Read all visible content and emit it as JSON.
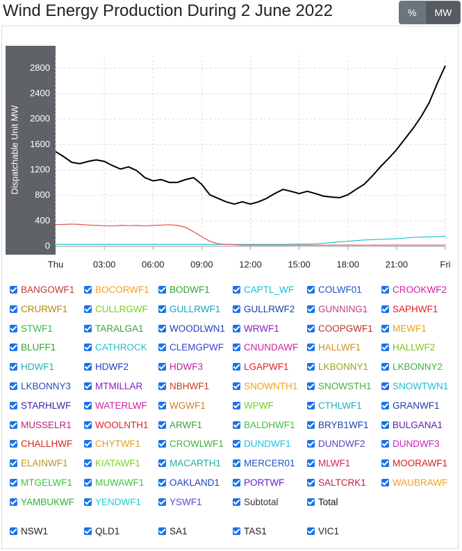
{
  "header": {
    "title": "Wind Energy Production During 2 June 2022",
    "buttons": [
      "%",
      "MW"
    ],
    "active_button": 1
  },
  "chart_data": {
    "type": "line",
    "ylabel": "Dispatchable Unit MW",
    "x": [
      0,
      0.5,
      1,
      1.5,
      2,
      2.5,
      3,
      3.5,
      4,
      4.5,
      5,
      5.5,
      6,
      6.5,
      7,
      7.5,
      8,
      8.5,
      9,
      9.5,
      10,
      10.5,
      11,
      11.5,
      12,
      12.5,
      13,
      13.5,
      14,
      14.5,
      15,
      15.5,
      16,
      16.5,
      17,
      17.5,
      18,
      18.5,
      19,
      19.5,
      20,
      20.5,
      21,
      21.5,
      22,
      22.5,
      23,
      23.5,
      24
    ],
    "xlim": [
      0,
      24
    ],
    "xticks": [
      {
        "value": 0,
        "label": "Thu"
      },
      {
        "value": 3,
        "label": "03:00"
      },
      {
        "value": 6,
        "label": "06:00"
      },
      {
        "value": 9,
        "label": "09:00"
      },
      {
        "value": 12,
        "label": "12:00"
      },
      {
        "value": 15,
        "label": "15:00"
      },
      {
        "value": 18,
        "label": "18:00"
      },
      {
        "value": 21,
        "label": "21:00"
      },
      {
        "value": 24,
        "label": "Fri"
      }
    ],
    "ylim": [
      0,
      3000
    ],
    "yticks": [
      0,
      400,
      800,
      1200,
      1600,
      2000,
      2400,
      2800
    ],
    "grid": true,
    "series": [
      {
        "name": "Total",
        "color": "#000000",
        "values": [
          1490,
          1410,
          1320,
          1300,
          1335,
          1360,
          1335,
          1270,
          1215,
          1250,
          1190,
          1080,
          1030,
          1050,
          1005,
          1005,
          1050,
          1080,
          975,
          810,
          755,
          700,
          665,
          700,
          665,
          700,
          755,
          830,
          895,
          865,
          830,
          865,
          830,
          790,
          775,
          765,
          810,
          895,
          975,
          1105,
          1250,
          1380,
          1520,
          1685,
          1850,
          2035,
          2255,
          2560,
          2840
        ]
      },
      {
        "name": "SAPHWF1",
        "color": "#e05050",
        "values": [
          340,
          345,
          350,
          345,
          335,
          330,
          325,
          320,
          330,
          325,
          330,
          320,
          330,
          335,
          340,
          330,
          300,
          230,
          150,
          80,
          40,
          30,
          25,
          20,
          20,
          20,
          20,
          20,
          20,
          20,
          20,
          20,
          20,
          20,
          20,
          20,
          20,
          20,
          20,
          20,
          20,
          20,
          20,
          20,
          20,
          20,
          20,
          20,
          20
        ]
      },
      {
        "name": "CAPTL_WF",
        "color": "#20c0d0",
        "values": [
          30,
          30,
          30,
          30,
          30,
          30,
          30,
          30,
          30,
          30,
          30,
          30,
          30,
          30,
          30,
          30,
          30,
          30,
          30,
          30,
          30,
          30,
          30,
          30,
          30,
          30,
          30,
          30,
          30,
          35,
          35,
          35,
          40,
          50,
          60,
          70,
          80,
          90,
          100,
          105,
          110,
          115,
          120,
          130,
          140,
          145,
          150,
          155,
          160
        ]
      }
    ]
  },
  "units": [
    {
      "name": "BANGOWF1",
      "color": "#c0392b"
    },
    {
      "name": "BOCORWF1",
      "color": "#f0a020"
    },
    {
      "name": "BODWF1",
      "color": "#2ca02c"
    },
    {
      "name": "CAPTL_WF",
      "color": "#17becf"
    },
    {
      "name": "COLWF01",
      "color": "#1f4fd0"
    },
    {
      "name": "CROOKWF2",
      "color": "#d020a0"
    },
    {
      "name": "CRURWF1",
      "color": "#b8860b"
    },
    {
      "name": "CULLRGWF",
      "color": "#7ccd22"
    },
    {
      "name": "GULLRWF1",
      "color": "#17a2c8"
    },
    {
      "name": "GULLRWF2",
      "color": "#1a3fa0"
    },
    {
      "name": "GUNNING1",
      "color": "#c04080"
    },
    {
      "name": "SAPHWF1",
      "color": "#e02020"
    },
    {
      "name": "STWF1",
      "color": "#3cb44b"
    },
    {
      "name": "TARALGA1",
      "color": "#3ca03c"
    },
    {
      "name": "WOODLWN1",
      "color": "#2040c0"
    },
    {
      "name": "WRWF1",
      "color": "#8020c0"
    },
    {
      "name": "COOPGWF1",
      "color": "#c03020"
    },
    {
      "name": "MEWF1",
      "color": "#f0a000"
    },
    {
      "name": "BLUFF1",
      "color": "#30a030"
    },
    {
      "name": "CATHROCK",
      "color": "#20c0d0"
    },
    {
      "name": "CLEMGPWF",
      "color": "#4040d0"
    },
    {
      "name": "CNUNDAWF",
      "color": "#d020a0"
    },
    {
      "name": "HALLWF1",
      "color": "#d09020"
    },
    {
      "name": "HALLWF2",
      "color": "#80c020"
    },
    {
      "name": "HDWF1",
      "color": "#20b0b0"
    },
    {
      "name": "HDWF2",
      "color": "#2040c0"
    },
    {
      "name": "HDWF3",
      "color": "#c020a0"
    },
    {
      "name": "LGAPWF1",
      "color": "#e02020"
    },
    {
      "name": "LKBONNY1",
      "color": "#a0a020"
    },
    {
      "name": "LKBONNY2",
      "color": "#40b040"
    },
    {
      "name": "LKBONNY3",
      "color": "#2050b0"
    },
    {
      "name": "MTMILLAR",
      "color": "#8020c0"
    },
    {
      "name": "NBHWF1",
      "color": "#c04020"
    },
    {
      "name": "SNOWNTH1",
      "color": "#f0a020"
    },
    {
      "name": "SNOWSTH1",
      "color": "#40b040"
    },
    {
      "name": "SNOWTWN1",
      "color": "#20c0d0"
    },
    {
      "name": "STARHLWF",
      "color": "#4020a0"
    },
    {
      "name": "WATERLWF",
      "color": "#d020a0"
    },
    {
      "name": "WGWF1",
      "color": "#d08020"
    },
    {
      "name": "WPWF",
      "color": "#70d020"
    },
    {
      "name": "CTHLWF1",
      "color": "#20b0c0"
    },
    {
      "name": "GRANWF1",
      "color": "#2040a0"
    },
    {
      "name": "MUSSELR1",
      "color": "#c02080"
    },
    {
      "name": "WOOLNTH1",
      "color": "#e02020"
    },
    {
      "name": "ARWF1",
      "color": "#40a040"
    },
    {
      "name": "BALDHWF1",
      "color": "#40c040"
    },
    {
      "name": "BRYB1WF1",
      "color": "#2040b0"
    },
    {
      "name": "BULGANA1",
      "color": "#6020a0"
    },
    {
      "name": "CHALLHWF",
      "color": "#e02020"
    },
    {
      "name": "CHYTWF1",
      "color": "#e0a020"
    },
    {
      "name": "CROWLWF1",
      "color": "#40b040"
    },
    {
      "name": "DUNDWF1",
      "color": "#20c0e0"
    },
    {
      "name": "DUNDWF2",
      "color": "#6040c0"
    },
    {
      "name": "DUNDWF3",
      "color": "#d020c0"
    },
    {
      "name": "ELAINWF1",
      "color": "#c09020"
    },
    {
      "name": "KIATAWF1",
      "color": "#80d020"
    },
    {
      "name": "MACARTH1",
      "color": "#20b0a0"
    },
    {
      "name": "MERCER01",
      "color": "#2050c0"
    },
    {
      "name": "MLWF1",
      "color": "#d02060"
    },
    {
      "name": "MOORAWF1",
      "color": "#d02020"
    },
    {
      "name": "MTGELWF1",
      "color": "#40c040"
    },
    {
      "name": "MUWAWF1",
      "color": "#40c040"
    },
    {
      "name": "OAKLAND1",
      "color": "#2040c0"
    },
    {
      "name": "PORTWF",
      "color": "#6020c0"
    },
    {
      "name": "SALTCRK1",
      "color": "#c02040"
    },
    {
      "name": "WAUBRAWF",
      "color": "#f0a020"
    },
    {
      "name": "YAMBUKWF",
      "color": "#30b030"
    },
    {
      "name": "YENDWF1",
      "color": "#20d0d0"
    },
    {
      "name": "YSWF1",
      "color": "#6040d0"
    },
    {
      "name": "Subtotal",
      "color": "#333333"
    },
    {
      "name": "Total",
      "color": "#111111"
    }
  ],
  "regions": [
    "NSW1",
    "QLD1",
    "SA1",
    "TAS1",
    "VIC1"
  ]
}
